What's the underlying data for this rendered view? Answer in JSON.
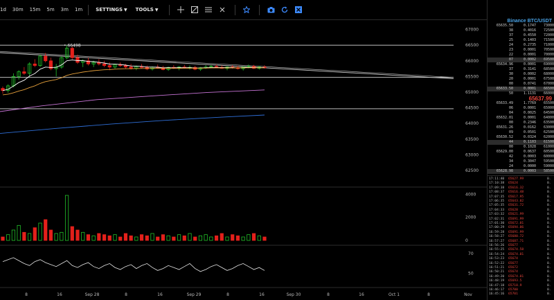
{
  "toolbar": {
    "timeframes": [
      "1d",
      "30m",
      "15m",
      "5m",
      "3m",
      "1m"
    ],
    "settings_label": "SETTINGS",
    "tools_label": "TOOLS",
    "icons": [
      "crosshair-icon",
      "trendline-icon",
      "fib-icon",
      "text-icon",
      "star-icon",
      "camera-icon",
      "refresh-icon",
      "close-icon"
    ]
  },
  "chart": {
    "annotation": "66498",
    "price_axis_main": [
      "67000",
      "66500",
      "66000",
      "65500",
      "65000",
      "64500",
      "64000",
      "63500",
      "63000",
      "62500"
    ],
    "price_axis_volume": [
      "4000",
      "2000",
      "0"
    ],
    "price_axis_osc": [
      "70",
      "50"
    ],
    "time_labels": [
      "8",
      "16",
      "Sep 28",
      "8",
      "16",
      "Sep 29",
      "8",
      "16",
      "Sep 30",
      "8",
      "16",
      "Oct 1",
      "8",
      "Nov"
    ],
    "colors": {
      "up": "#22c32a",
      "down": "#e3201b",
      "ema_fast": "#ffffff",
      "ema_mid": "#e7a13b",
      "ema_slow": "#c774d6",
      "ema_long": "#2f6fd8",
      "trendline": "#cfcfcf"
    }
  },
  "chart_data": {
    "type": "candlestick",
    "title": "",
    "ylim": [
      62300,
      67300
    ],
    "levels": [
      66500,
      65470,
      64470
    ],
    "ema_labels": [],
    "candles": [
      [
        65120,
        65180,
        64950,
        65050
      ],
      [
        65050,
        65250,
        64980,
        65200
      ],
      [
        65200,
        65600,
        65150,
        65500
      ],
      [
        65500,
        65700,
        65400,
        65650
      ],
      [
        65650,
        65800,
        65550,
        65600
      ],
      [
        65600,
        65950,
        65500,
        65900
      ],
      [
        65900,
        66050,
        65800,
        65850
      ],
      [
        65850,
        66200,
        65800,
        66150
      ],
      [
        66150,
        66250,
        65950,
        66000
      ],
      [
        66000,
        66100,
        65700,
        65750
      ],
      [
        65750,
        65900,
        65500,
        65800
      ],
      [
        65800,
        66150,
        65750,
        66100
      ],
      [
        66100,
        66498,
        66050,
        66400
      ],
      [
        66400,
        66450,
        66050,
        66100
      ],
      [
        66100,
        66200,
        65900,
        65950
      ],
      [
        65950,
        66050,
        65800,
        66000
      ],
      [
        66000,
        66100,
        65850,
        65900
      ],
      [
        65900,
        66000,
        65800,
        65950
      ],
      [
        65950,
        66050,
        65850,
        65900
      ],
      [
        65900,
        66000,
        65800,
        65850
      ],
      [
        65850,
        65950,
        65700,
        65800
      ],
      [
        65800,
        65900,
        65750,
        65880
      ],
      [
        65880,
        65950,
        65800,
        65850
      ],
      [
        65850,
        65900,
        65750,
        65800
      ],
      [
        65800,
        65900,
        65720,
        65760
      ],
      [
        65760,
        65850,
        65700,
        65820
      ],
      [
        65820,
        65900,
        65760,
        65790
      ],
      [
        65790,
        65850,
        65700,
        65740
      ],
      [
        65740,
        65820,
        65690,
        65800
      ],
      [
        65800,
        65880,
        65750,
        65780
      ],
      [
        65780,
        65840,
        65700,
        65720
      ],
      [
        65720,
        65810,
        65680,
        65790
      ],
      [
        65790,
        65860,
        65740,
        65760
      ],
      [
        65760,
        65830,
        65700,
        65800
      ],
      [
        65800,
        65870,
        65750,
        65770
      ],
      [
        65770,
        65850,
        65720,
        65790
      ],
      [
        65790,
        65840,
        65700,
        65730
      ],
      [
        65730,
        65800,
        65680,
        65780
      ],
      [
        65780,
        65860,
        65740,
        65800
      ],
      [
        65800,
        65870,
        65760,
        65820
      ],
      [
        65820,
        65880,
        65770,
        65790
      ],
      [
        65790,
        65850,
        65740,
        65760
      ],
      [
        65760,
        65820,
        65700,
        65800
      ],
      [
        65800,
        65860,
        65750,
        65780
      ],
      [
        65780,
        65840,
        65720,
        65750
      ],
      [
        65750,
        65820,
        65690,
        65800
      ],
      [
        65800,
        65880,
        65760,
        65820
      ],
      [
        65820,
        65870,
        65740,
        65760
      ],
      [
        65760,
        65840,
        65720,
        65800
      ],
      [
        65800,
        65860,
        65750,
        65780
      ]
    ],
    "volume": [
      300,
      500,
      900,
      1300,
      700,
      600,
      1100,
      1500,
      1800,
      900,
      600,
      700,
      3900,
      1200,
      900,
      700,
      500,
      400,
      600,
      500,
      400,
      500,
      300,
      600,
      400,
      300,
      500,
      400,
      600,
      300,
      500,
      400,
      300,
      500,
      400,
      600,
      300,
      400,
      500,
      300,
      400,
      600,
      300,
      500,
      400,
      300,
      500,
      600,
      400,
      300
    ],
    "oscillator": [
      62,
      64,
      66,
      63,
      60,
      58,
      62,
      64,
      61,
      59,
      57,
      60,
      63,
      58,
      56,
      59,
      61,
      57,
      55,
      58,
      60,
      56,
      54,
      57,
      59,
      55,
      58,
      60,
      56,
      53,
      55,
      58,
      56,
      54,
      57,
      60,
      55,
      52,
      54,
      57,
      59,
      56,
      53,
      55,
      58,
      60,
      57,
      54,
      56,
      53
    ]
  },
  "orderbook": {
    "pair": "Binance BTC/USDT",
    "asks": [
      {
        "p": "65635.50",
        "q": "0.1747",
        "l": "73000"
      },
      {
        "p": "38",
        "q": "0.4016",
        "l": "72500"
      },
      {
        "p": "37",
        "q": "0.4550",
        "l": "72000"
      },
      {
        "p": "25",
        "q": "0.1403",
        "l": "71500"
      },
      {
        "p": "24",
        "q": "0.2735",
        "l": "71000"
      },
      {
        "p": "23",
        "q": "0.0001",
        "l": "70500"
      },
      {
        "p": "22",
        "q": "0.0001",
        "l": "70000"
      },
      {
        "p": "07",
        "q": "0.0002",
        "l": "69500"
      },
      {
        "p": "65634.96",
        "q": "0.0001",
        "l": "69000"
      },
      {
        "p": "37",
        "q": "0.3141",
        "l": "68500"
      },
      {
        "p": "30",
        "q": "0.0002",
        "l": "68000"
      },
      {
        "p": "20",
        "q": "0.0001",
        "l": "67500"
      },
      {
        "p": "00",
        "q": "0.0741",
        "l": "67000"
      },
      {
        "p": "65633.50",
        "q": "0.0001",
        "l": "66500"
      },
      {
        "p": "50",
        "q": "1.1131",
        "l": "66000"
      }
    ],
    "last_price": "65637.99",
    "bids": [
      {
        "p": "65633.49",
        "q": "1.7769",
        "l": "65500"
      },
      {
        "p": "06",
        "q": "0.0001",
        "l": "65000"
      },
      {
        "p": "04",
        "q": "0.0025",
        "l": "64500"
      },
      {
        "p": "65632.01",
        "q": "0.0001",
        "l": "64000"
      },
      {
        "p": "00",
        "q": "0.2346",
        "l": "63500"
      },
      {
        "p": "65631.26",
        "q": "0.0162",
        "l": "63000"
      },
      {
        "p": "09",
        "q": "0.0501",
        "l": "62500"
      },
      {
        "p": "65630.52",
        "q": "0.0324",
        "l": "62000"
      },
      {
        "p": "44",
        "q": "0.1103",
        "l": "61500"
      },
      {
        "p": "00",
        "q": "0.1028",
        "l": "61000"
      },
      {
        "p": "65629.00",
        "q": "0.0637",
        "l": "60500"
      },
      {
        "p": "42",
        "q": "0.0003",
        "l": "60000"
      },
      {
        "p": "34",
        "q": "0.3047",
        "l": "59500"
      },
      {
        "p": "24",
        "q": "0.0000",
        "l": "59000"
      },
      {
        "p": "65628.98",
        "q": "0.0003",
        "l": "58500"
      }
    ]
  },
  "trades": [
    {
      "t": "17:11:40",
      "p": "65627.99",
      "a": "0."
    },
    {
      "t": "17:10:38",
      "p": "65624",
      "a": "0."
    },
    {
      "t": "17:09:38",
      "p": "65616.32",
      "a": "0."
    },
    {
      "t": "17:08:37",
      "p": "65616.48",
      "a": "0."
    },
    {
      "t": "17:07:35",
      "p": "65617.95",
      "a": "0."
    },
    {
      "t": "17:06:35",
      "p": "65643.02",
      "a": "0."
    },
    {
      "t": "17:05:35",
      "p": "65631.72",
      "a": "0."
    },
    {
      "t": "17:04:33",
      "p": "65628",
      "a": "0."
    },
    {
      "t": "17:03:32",
      "p": "65621.99",
      "a": "0."
    },
    {
      "t": "17:02:31",
      "p": "65691.99",
      "a": "0."
    },
    {
      "t": "17:01:30",
      "p": "65672.01",
      "a": "0."
    },
    {
      "t": "17:00:29",
      "p": "65694.06",
      "a": "0."
    },
    {
      "t": "16:59:28",
      "p": "65691.99",
      "a": "0."
    },
    {
      "t": "16:58:27",
      "p": "65680.72",
      "a": "0."
    },
    {
      "t": "16:57:27",
      "p": "65687.71",
      "a": "0."
    },
    {
      "t": "16:56:26",
      "p": "65677",
      "a": "0."
    },
    {
      "t": "16:55:25",
      "p": "65674.58",
      "a": "0."
    },
    {
      "t": "16:54:24",
      "p": "65674.01",
      "a": "0."
    },
    {
      "t": "16:53:23",
      "p": "65674",
      "a": "0."
    },
    {
      "t": "16:52:22",
      "p": "65677",
      "a": "0."
    },
    {
      "t": "16:51:21",
      "p": "65672",
      "a": "0."
    },
    {
      "t": "16:50:21",
      "p": "65674",
      "a": "0."
    },
    {
      "t": "16:49:20",
      "p": "65674.01",
      "a": "0."
    },
    {
      "t": "16:48:19",
      "p": "65693.5",
      "a": "0."
    },
    {
      "t": "16:47:18",
      "p": "65718.9",
      "a": "0."
    },
    {
      "t": "16:46:17",
      "p": "65700",
      "a": "0."
    },
    {
      "t": "16:45:16",
      "p": "65701",
      "a": "0."
    }
  ]
}
